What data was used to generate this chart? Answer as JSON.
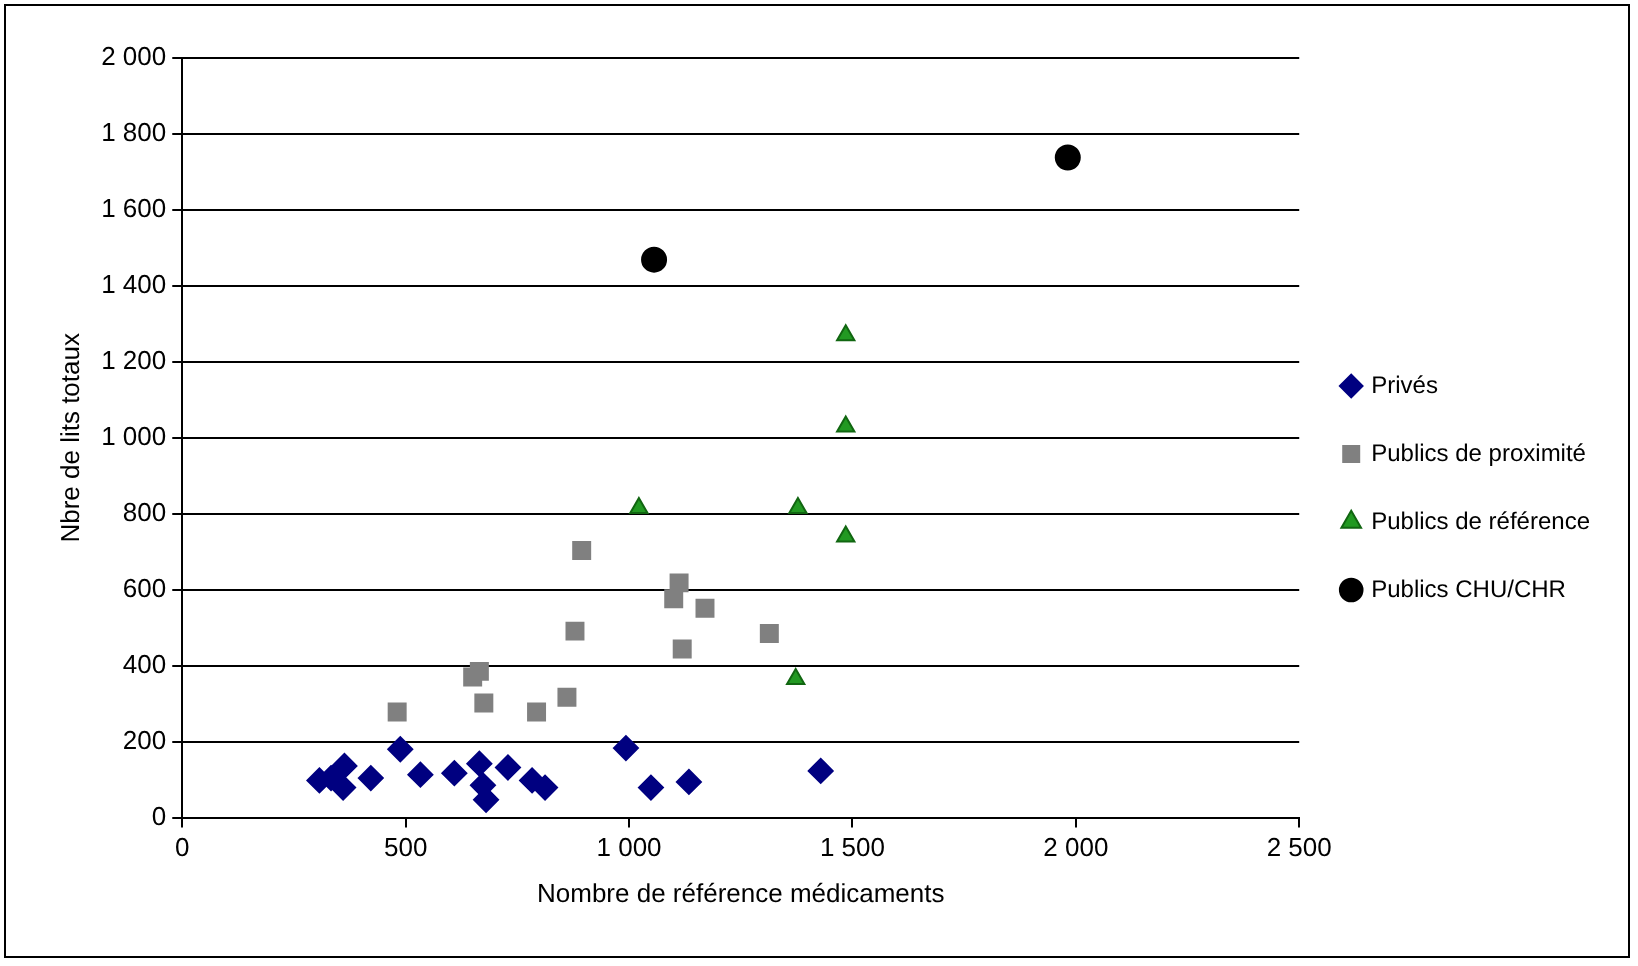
{
  "chart_data": {
    "type": "scatter",
    "xlabel": "Nombre de référence médicaments",
    "ylabel": "Nbre de lits totaux",
    "xlim": [
      0,
      2500
    ],
    "xticks": [
      0,
      500,
      {
        "value": 1000,
        "label": "1 000"
      },
      {
        "value": 1500,
        "label": "1 500"
      },
      {
        "value": 2000,
        "label": "2 000"
      },
      {
        "value": 2500,
        "label": "2 500"
      }
    ],
    "ylim": [
      0,
      2000
    ],
    "yticks": [
      0,
      200,
      400,
      600,
      800,
      {
        "value": 1000,
        "label": "1 000"
      },
      {
        "value": 1200,
        "label": "1 200"
      },
      {
        "value": 1400,
        "label": "1 400"
      },
      {
        "value": 1600,
        "label": "1 600"
      },
      {
        "value": 1800,
        "label": "1 800"
      },
      {
        "value": 2000,
        "label": "2 000"
      }
    ],
    "grid": "y",
    "legend": "right",
    "series": [
      {
        "name": "Privés",
        "color": "#000080",
        "marker": "diamond",
        "x": [
          307,
          333,
          360,
          363,
          422,
          488,
          533,
          609,
          665,
          673,
          680,
          729,
          783,
          812,
          993,
          1049,
          1134,
          1429
        ],
        "values": [
          98,
          104,
          79,
          136,
          104,
          180,
          113,
          117,
          142,
          85,
          47,
          132,
          98,
          79,
          183,
          79,
          94,
          123
        ]
      },
      {
        "name": "Publics de proximité",
        "color": "#808080",
        "marker": "square",
        "x": [
          481,
          650,
          665,
          675,
          793,
          861,
          879,
          894,
          1100,
          1112,
          1119,
          1170,
          1314
        ],
        "values": [
          278,
          370,
          385,
          302,
          278,
          317,
          491,
          703,
          576,
          618,
          444,
          551,
          485
        ]
      },
      {
        "name": "Publics de référence",
        "color": "#229922",
        "marker": "triangle",
        "x": [
          1022,
          1378,
          1373,
          1485,
          1485,
          1485
        ],
        "values": [
          815,
          815,
          365,
          1270,
          1030,
          740
        ]
      },
      {
        "name": "Publics CHU/CHR",
        "color": "#000000",
        "marker": "circle",
        "x": [
          1056,
          1982
        ],
        "values": [
          1469,
          1738
        ]
      }
    ]
  }
}
